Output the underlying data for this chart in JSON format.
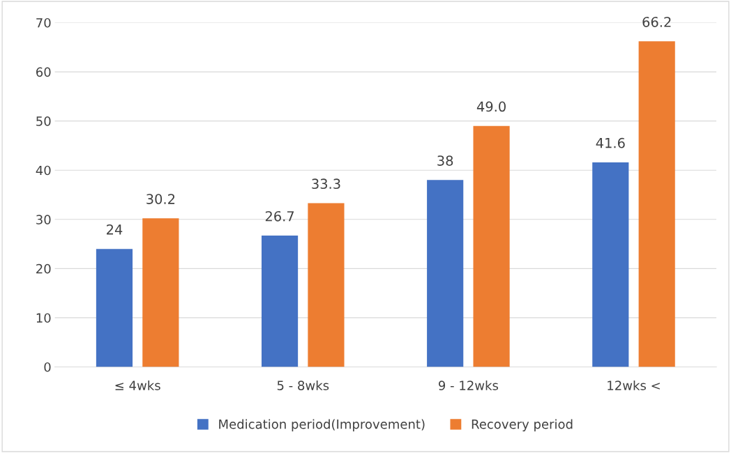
{
  "chart_data": {
    "type": "bar",
    "categories": [
      "≤ 4wks",
      "5 - 8wks",
      "9 - 12wks",
      "12wks <"
    ],
    "series": [
      {
        "name": "Medication period(Improvement)",
        "color": "#4472c4",
        "values": [
          24,
          26.7,
          38,
          41.6
        ],
        "value_labels": [
          "24",
          "26.7",
          "38",
          "41.6"
        ]
      },
      {
        "name": "Recovery period",
        "color": "#ed7d31",
        "values": [
          30.2,
          33.3,
          49.0,
          66.2
        ],
        "value_labels": [
          "30.2",
          "33.3",
          "49.0",
          "66.2"
        ]
      }
    ],
    "ylim": [
      0,
      70
    ],
    "yticks": [
      0,
      10,
      20,
      30,
      40,
      50,
      60,
      70
    ],
    "grid": "y",
    "legend": "bottom"
  }
}
